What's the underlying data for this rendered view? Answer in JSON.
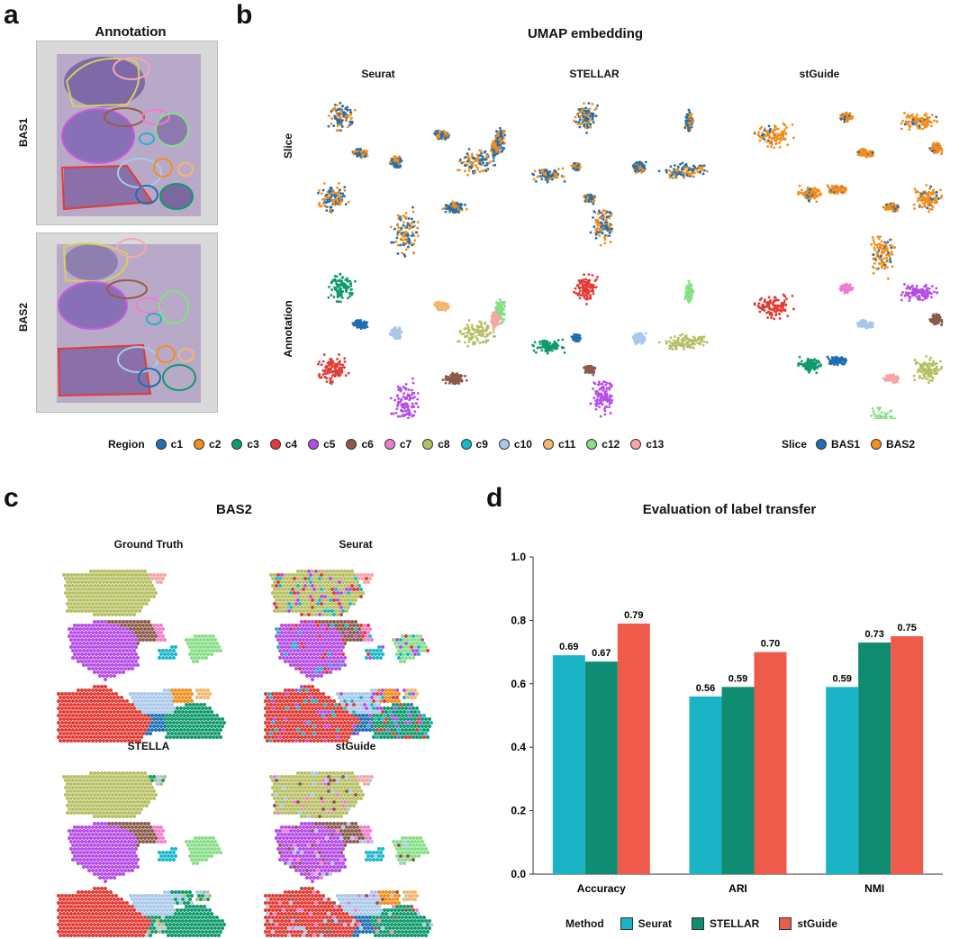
{
  "panel_a": {
    "letter": "a",
    "title": "Annotation",
    "slices": [
      {
        "label": "BAS1"
      },
      {
        "label": "BAS2"
      }
    ]
  },
  "panel_b": {
    "letter": "b",
    "title": "UMAP embedding",
    "columns": [
      "Seurat",
      "STELLAR",
      "stGuide"
    ],
    "rows": [
      "Slice",
      "Annotation"
    ],
    "region_legend": {
      "title": "Region",
      "items": [
        {
          "label": "c1",
          "color": "#1f6fb2"
        },
        {
          "label": "c2",
          "color": "#f28e1c"
        },
        {
          "label": "c3",
          "color": "#0f9a6b"
        },
        {
          "label": "c4",
          "color": "#e23b34"
        },
        {
          "label": "c5",
          "color": "#b64ce8"
        },
        {
          "label": "c6",
          "color": "#8b5a4a"
        },
        {
          "label": "c7",
          "color": "#f07ccf"
        },
        {
          "label": "c8",
          "color": "#b7bf63"
        },
        {
          "label": "c9",
          "color": "#19b7c9"
        },
        {
          "label": "c10",
          "color": "#a9c8ea"
        },
        {
          "label": "c11",
          "color": "#f5b66e"
        },
        {
          "label": "c12",
          "color": "#86df86"
        },
        {
          "label": "c13",
          "color": "#f7a5a5"
        }
      ]
    },
    "slice_legend": {
      "title": "Slice",
      "items": [
        {
          "label": "BAS1",
          "color": "#1f6fb2"
        },
        {
          "label": "BAS2",
          "color": "#f28e1c"
        }
      ]
    }
  },
  "panel_c": {
    "letter": "c",
    "title": "BAS2",
    "maps": [
      "Ground Truth",
      "Seurat",
      "STELLA",
      "stGuide"
    ]
  },
  "panel_d": {
    "letter": "d",
    "title": "Evaluation of label transfer"
  },
  "chart_data": {
    "type": "bar",
    "title": "Evaluation of label transfer",
    "categories": [
      "Accuracy",
      "ARI",
      "NMI"
    ],
    "series": [
      {
        "name": "Seurat",
        "color": "#1bb4c7",
        "values": [
          0.69,
          0.56,
          0.59
        ]
      },
      {
        "name": "STELLAR",
        "color": "#0f8c72",
        "values": [
          0.67,
          0.59,
          0.73
        ]
      },
      {
        "name": "stGuide",
        "color": "#ee5b4a",
        "values": [
          0.79,
          0.7,
          0.75
        ]
      }
    ],
    "value_labels": [
      [
        "0.69",
        "0.56",
        "0.59"
      ],
      [
        "0.67",
        "0.59",
        "0.73"
      ],
      [
        "0.79",
        "0.70",
        "0.75"
      ]
    ],
    "ylim": [
      0.0,
      1.0
    ],
    "yticks": [
      "0.0",
      "0.2",
      "0.4",
      "0.6",
      "0.8",
      "1.0"
    ],
    "legend_title": "Method",
    "xlabel": "",
    "ylabel": ""
  }
}
